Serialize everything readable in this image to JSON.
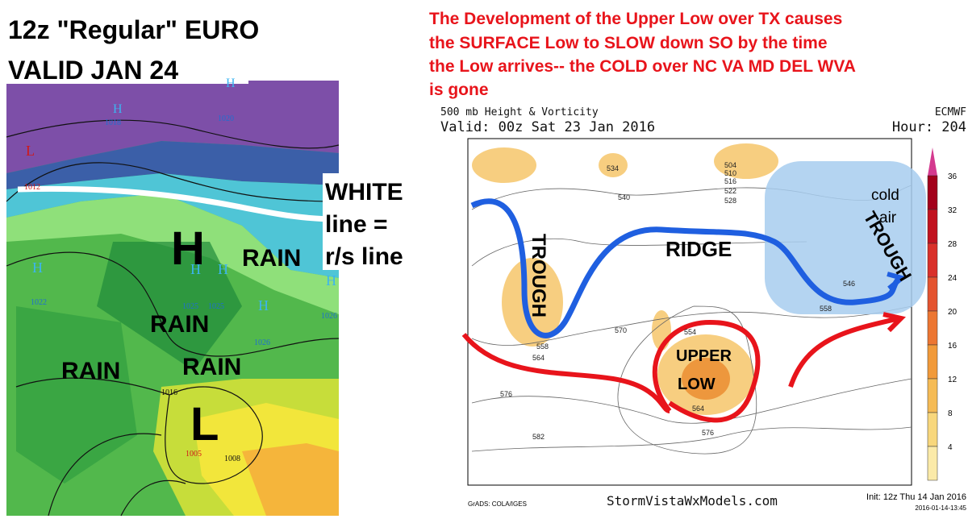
{
  "left_panel": {
    "title_lines": [
      "12z \"Regular\"  EURO",
      "VALID  JAN 24"
    ],
    "annotations": {
      "white_line": [
        "WHITE",
        "line =",
        "r/s line"
      ],
      "high": "H",
      "low": "L",
      "rain": [
        "RAIN",
        "RAIN",
        "RAIN",
        "RAIN"
      ]
    },
    "pressure_labels": [
      "1018",
      "1020",
      "1012",
      "1022",
      "1025",
      "1025",
      "1026",
      "1026",
      "1016",
      "1005",
      "1008"
    ],
    "small_centers": [
      "L",
      "H",
      "H",
      "H",
      "H",
      "H",
      "H",
      "H"
    ]
  },
  "right_panel": {
    "caption": [
      "The Development of the Upper Low over  TX  causes",
      "the  SURFACE Low to   SLOW down  SO  by  the time",
      "the Low arrives--  the COLD over  NC VA MD DEL WVA",
      "is gone"
    ],
    "header": {
      "title": "500 mb Height & Vorticity",
      "model": "ECMWF",
      "valid": "Valid: 00z Sat 23 Jan 2016",
      "hour": "Hour: 204"
    },
    "features": {
      "trough_west": "TROUGH",
      "ridge": "RIDGE",
      "trough_east": "TROUGH",
      "cold_air": [
        "cold",
        "air"
      ],
      "upper_low": [
        "UPPER",
        "LOW"
      ]
    },
    "height_labels": [
      "534",
      "540",
      "504",
      "510",
      "516",
      "522",
      "528",
      "558",
      "564",
      "570",
      "576",
      "582",
      "554",
      "564",
      "546",
      "558",
      "576"
    ],
    "colorbar": [
      36,
      32,
      28,
      24,
      20,
      16,
      12,
      8,
      4
    ],
    "footer": {
      "site": "StormVistaWxModels.com",
      "credit": "GrADS: COLA/IGES",
      "init": "Init: 12z Thu 14 Jan 2016",
      "stamp": "2016-01-14-13:45"
    }
  }
}
